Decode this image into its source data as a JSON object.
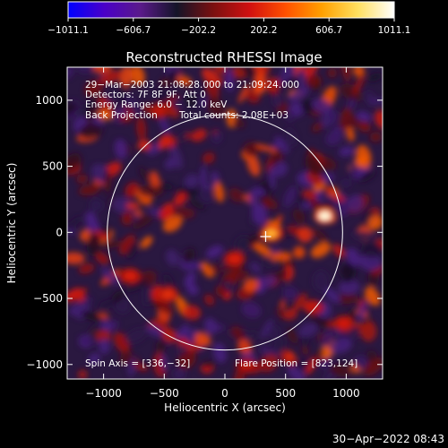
{
  "chart_data": {
    "type": "heatmap",
    "title": "Reconstructed RHESSI Image",
    "xlabel": "Heliocentric X (arcsec)",
    "ylabel": "Heliocentric Y (arcsec)",
    "xlim": [
      -1300,
      1300
    ],
    "ylim": [
      -1110,
      1250
    ],
    "x_ticks": [
      -1000,
      -500,
      0,
      500,
      1000
    ],
    "y_ticks": [
      -1000,
      -500,
      0,
      500,
      1000
    ],
    "x_tick_labels": [
      "−1000",
      "−500",
      "0",
      "500",
      "1000"
    ],
    "y_tick_labels": [
      "−1000",
      "−500",
      "0",
      "500",
      "1000"
    ],
    "colorbar": {
      "range": [
        -1011.1,
        1011.1
      ],
      "ticks": [
        -1011.1,
        -606.7,
        -202.2,
        202.2,
        606.7,
        1011.1
      ],
      "tick_labels": [
        "−1011.1",
        "−606.7",
        "−202.2",
        "202.2",
        "606.7",
        "1011.1"
      ],
      "colors": [
        "#0000ff",
        "#4a00c8",
        "#5a1a8a",
        "#141428",
        "#7a1010",
        "#d01010",
        "#ff5000",
        "#ffa000",
        "#ffe060",
        "#ffffff"
      ]
    },
    "info_lines": [
      "29−Mar−2003 21:08:28.000 to 21:09:24.000",
      "Detectors: 7F 8F 9F, Att 0",
      "Energy Range: 6.0 − 12.0 keV"
    ],
    "method": "Back Projection",
    "total_counts": "Total counts: 2.08E+03",
    "spin_axis": "Spin Axis = [336,−32]",
    "flare_position": "Flare Position = [823,124]",
    "sun_center": [
      0,
      0
    ],
    "sun_radius": 970,
    "spin_axis_xy": [
      336,
      -32
    ],
    "bright_sources": [
      {
        "x": 823,
        "y": 124,
        "value": 1011.1
      },
      {
        "x": 380,
        "y": -10,
        "value": 900
      },
      {
        "x": 80,
        "y": -200,
        "value": 560
      },
      {
        "x": -470,
        "y": -470,
        "value": 610
      },
      {
        "x": -780,
        "y": -330,
        "value": 560
      },
      {
        "x": 980,
        "y": -690,
        "value": 540
      },
      {
        "x": -540,
        "y": 920,
        "value": 480
      },
      {
        "x": 180,
        "y": -1010,
        "value": 460
      }
    ]
  },
  "timestamp": "30−Apr−2022 08:43"
}
